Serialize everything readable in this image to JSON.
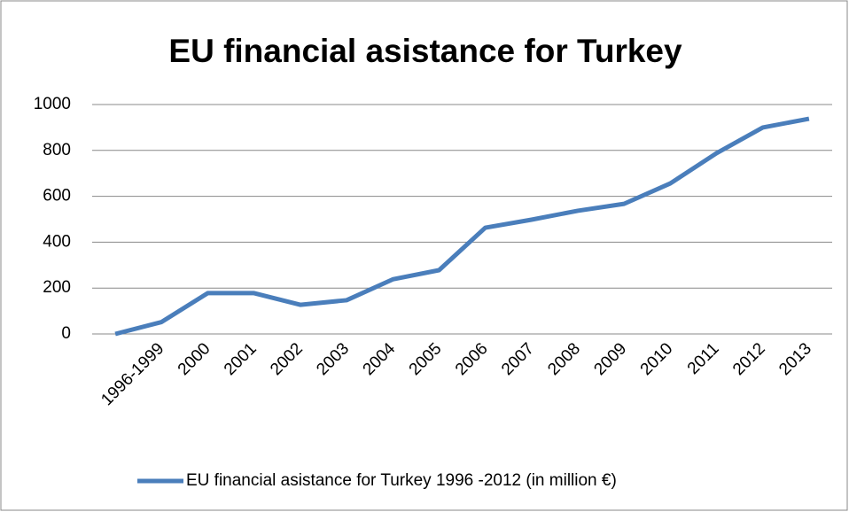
{
  "chart_data": {
    "type": "line",
    "title": "EU financial asistance for Turkey",
    "categories": [
      null,
      "1996-1999",
      "2000",
      "2001",
      "2002",
      "2003",
      "2004",
      "2005",
      "2006",
      "2007",
      "2008",
      "2009",
      "2010",
      "2011",
      "2012",
      "2013"
    ],
    "series": [
      {
        "name": "EU financial asistance for Turkey 1996 -2012 (in million €)",
        "color": "#4a7ebb",
        "values": [
          0,
          52,
          178,
          178,
          127,
          147,
          238,
          278,
          463,
          498,
          537,
          567,
          656,
          788,
          900,
          938
        ]
      }
    ],
    "ylim": [
      0,
      1000
    ],
    "yticks": [
      0,
      200,
      400,
      600,
      800,
      1000
    ],
    "grid": true,
    "legend": "bottom"
  }
}
